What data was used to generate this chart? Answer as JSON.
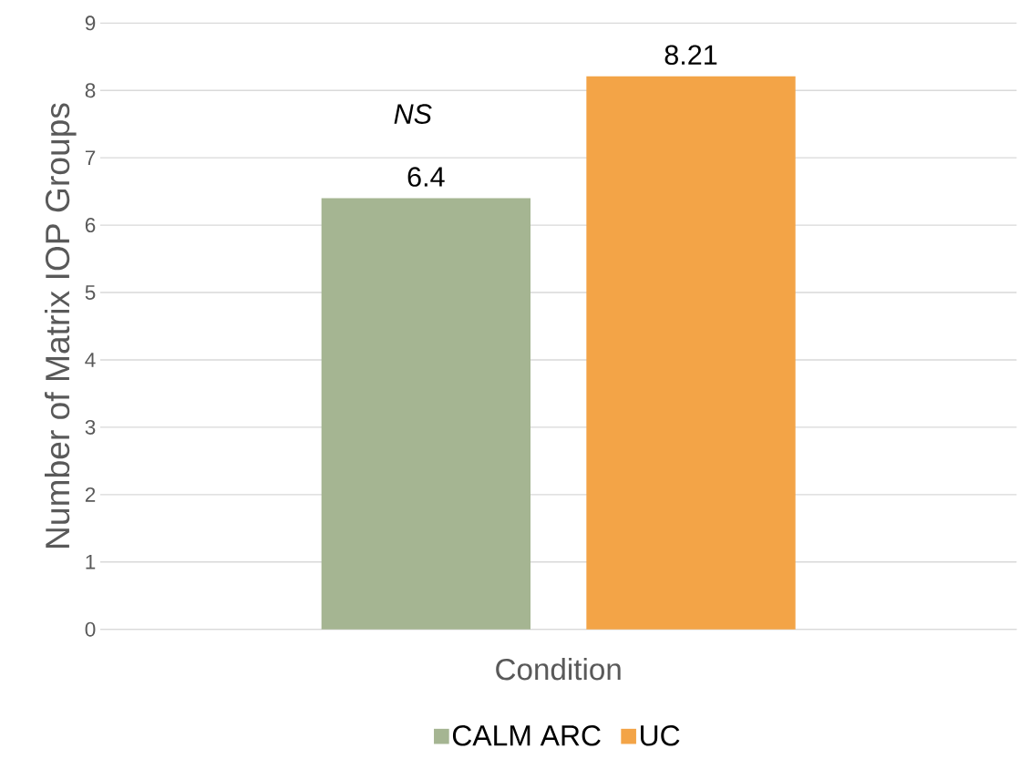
{
  "chart_data": {
    "type": "bar",
    "ylabel": "Number of Matrix IOP Groups",
    "categories": [
      "Condition"
    ],
    "series": [
      {
        "name": "CALM ARC",
        "color": "#a5b592",
        "values": [
          6.4
        ]
      },
      {
        "name": "UC",
        "color": "#f3a447",
        "values": [
          8.21
        ]
      }
    ],
    "ylim": [
      0,
      9
    ],
    "yticks": [
      0,
      1,
      2,
      3,
      4,
      5,
      6,
      7,
      8,
      9
    ],
    "grid": "y",
    "legend": "bottom",
    "data_labels": true,
    "annotations": [
      "NS"
    ]
  }
}
